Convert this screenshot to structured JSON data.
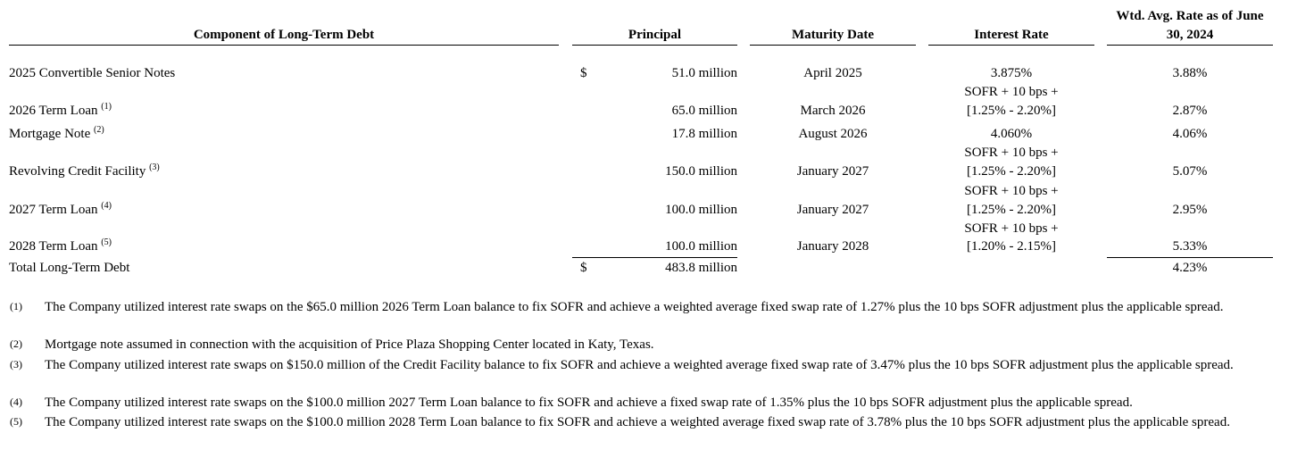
{
  "headers": {
    "component": "Component of Long-Term Debt",
    "principal": "Principal",
    "maturity": "Maturity Date",
    "rate": "Interest Rate",
    "wtd_line1": "Wtd. Avg. Rate as of June",
    "wtd_line2": "30, 2024"
  },
  "rows": [
    {
      "name": "2025 Convertible Senior Notes",
      "sup": "",
      "dollar": "$",
      "principal": "51.0 million",
      "maturity": "April 2025",
      "rate1": "3.875%",
      "rate2": "",
      "wtd": "3.88%"
    },
    {
      "name": "2026 Term Loan",
      "sup": "(1)",
      "dollar": "",
      "principal": "65.0 million",
      "maturity": "March 2026",
      "rate1": "SOFR + 10 bps +",
      "rate2": "[1.25% - 2.20%]",
      "wtd": "2.87%"
    },
    {
      "name": "Mortgage Note",
      "sup": "(2)",
      "dollar": "",
      "principal": "17.8 million",
      "maturity": "August 2026",
      "rate1": "4.060%",
      "rate2": "",
      "wtd": "4.06%"
    },
    {
      "name": "Revolving Credit Facility",
      "sup": "(3)",
      "dollar": "",
      "principal": "150.0 million",
      "maturity": "January 2027",
      "rate1": "SOFR + 10 bps +",
      "rate2": "[1.25% - 2.20%]",
      "wtd": "5.07%"
    },
    {
      "name": "2027 Term Loan",
      "sup": "(4)",
      "dollar": "",
      "principal": "100.0 million",
      "maturity": "January 2027",
      "rate1": "SOFR + 10 bps +",
      "rate2": "[1.25% - 2.20%]",
      "wtd": "2.95%"
    },
    {
      "name": "2028 Term Loan",
      "sup": "(5)",
      "dollar": "",
      "principal": "100.0 million",
      "maturity": "January 2028",
      "rate1": "SOFR + 10 bps +",
      "rate2": "[1.20% - 2.15%]",
      "wtd": "5.33%"
    }
  ],
  "total": {
    "name": "Total Long-Term Debt",
    "dollar": "$",
    "principal": "483.8 million",
    "wtd": "4.23%"
  },
  "footnotes": [
    {
      "mark": "(1)",
      "text": "The Company utilized interest rate swaps on the $65.0 million 2026 Term Loan balance to fix SOFR and achieve a weighted average fixed swap rate of 1.27% plus the 10 bps SOFR adjustment plus the applicable spread."
    },
    {
      "mark": "(2)",
      "text": "Mortgage note assumed in connection with the acquisition of Price Plaza Shopping Center located in Katy, Texas."
    },
    {
      "mark": "(3)",
      "text": "The Company utilized interest rate swaps on $150.0 million of the Credit Facility balance to fix SOFR and achieve a weighted average fixed swap rate of 3.47% plus the 10 bps SOFR adjustment plus the applicable spread."
    },
    {
      "mark": "(4)",
      "text": "The Company utilized interest rate swaps on the $100.0 million 2027 Term Loan balance to fix SOFR and achieve a fixed swap rate of 1.35% plus the 10 bps SOFR adjustment plus the applicable spread."
    },
    {
      "mark": "(5)",
      "text": "The Company utilized interest rate swaps on the $100.0 million 2028 Term Loan balance to fix SOFR and achieve a weighted average fixed swap rate of 3.78% plus the 10 bps SOFR adjustment plus the applicable spread."
    }
  ]
}
